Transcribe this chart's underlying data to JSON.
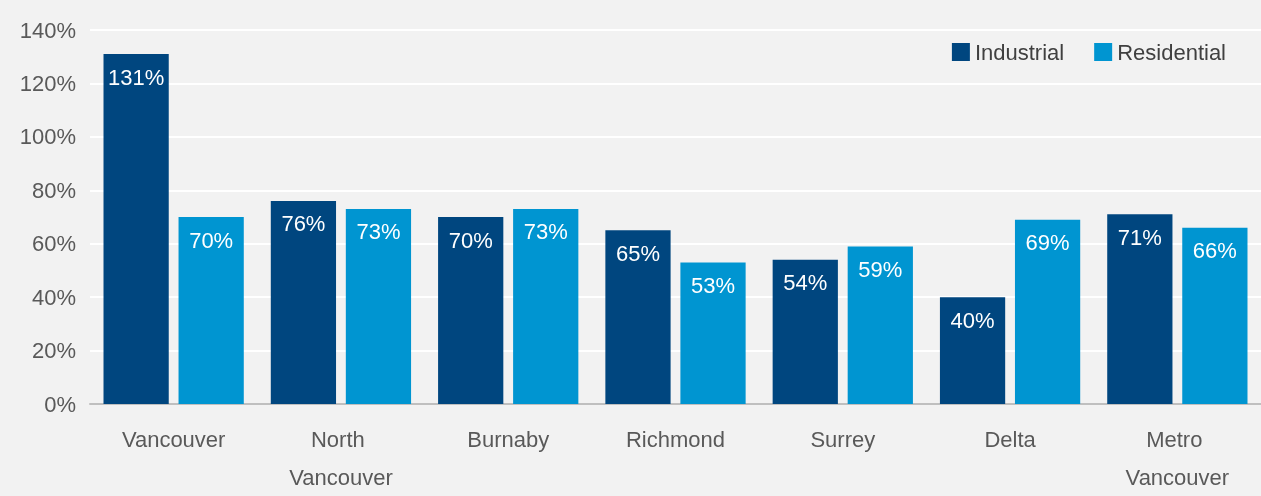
{
  "chart_data": {
    "type": "bar",
    "categories": [
      "Vancouver",
      "North Vancouver",
      "Burnaby",
      "Richmond",
      "Surrey",
      "Delta",
      "Metro Vancouver"
    ],
    "series": [
      {
        "name": "Industrial",
        "color": "#00467f",
        "values": [
          131,
          76,
          70,
          65,
          54,
          40,
          71
        ],
        "value_labels": [
          "131%",
          "76%",
          "70%",
          "65%",
          "54%",
          "40%",
          "71%"
        ]
      },
      {
        "name": "Residential",
        "color": "#0095d1",
        "values": [
          70,
          73,
          73,
          53,
          59,
          69,
          66
        ],
        "value_labels": [
          "70%",
          "73%",
          "73%",
          "53%",
          "59%",
          "69%",
          "66%"
        ]
      }
    ],
    "ylim": [
      0,
      140
    ],
    "yticks": [
      {
        "value": 0,
        "label": "0%"
      },
      {
        "value": 20,
        "label": "20%"
      },
      {
        "value": 40,
        "label": "40%"
      },
      {
        "value": 60,
        "label": "60%"
      },
      {
        "value": 80,
        "label": "80%"
      },
      {
        "value": 100,
        "label": "100%"
      },
      {
        "value": 120,
        "label": "120%"
      },
      {
        "value": 140,
        "label": "140%"
      }
    ],
    "grid": "y",
    "legend": "top right"
  }
}
